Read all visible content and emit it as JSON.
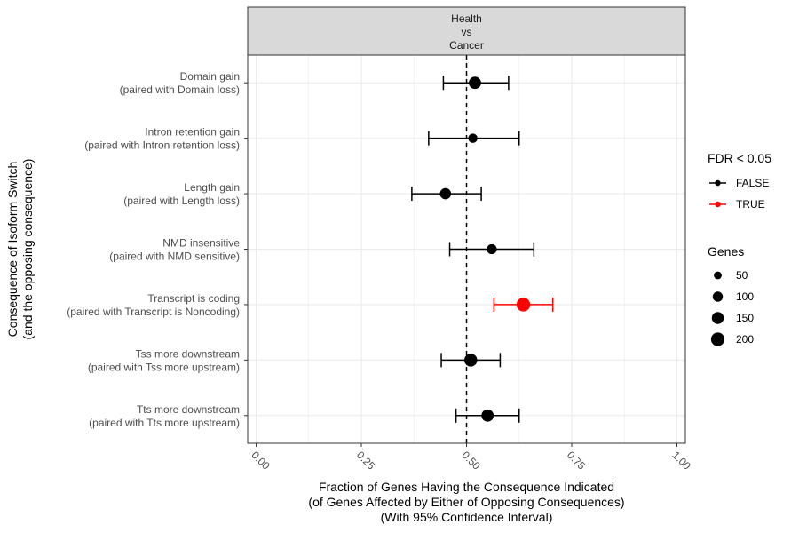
{
  "chart_data": {
    "type": "scatter",
    "subtype": "forest-plot-with-error-bars",
    "facet_strip": [
      "Health",
      "vs",
      "Cancer"
    ],
    "xlabel": [
      "Fraction of Genes Having the Consequence Indicated",
      "(of Genes Affected by Either of Opposing Consequences)",
      "(With 95% Confidence Interval)"
    ],
    "ylabel": [
      "Consequence of Isoform Switch",
      "(and the opposing consequence)"
    ],
    "xlim": [
      -0.02,
      1.02
    ],
    "x_ticks": [
      0,
      0.25,
      0.5,
      0.75,
      1
    ],
    "x_tick_labels": [
      "0.00",
      "0.25",
      "0.50",
      "0.75",
      "1.00"
    ],
    "reference_line_x": 0.5,
    "categories": [
      [
        "Domain gain",
        "(paired with Domain loss)"
      ],
      [
        "Intron retention gain",
        "(paired with Intron retention loss)"
      ],
      [
        "Length gain",
        "(paired with Length loss)"
      ],
      [
        "NMD insensitive",
        "(paired with NMD sensitive)"
      ],
      [
        "Transcript is coding",
        "(paired with Transcript is Noncoding)"
      ],
      [
        "Tss more downstream",
        "(paired with Tss more upstream)"
      ],
      [
        "Tts more downstream",
        "(paired with Tts more upstream)"
      ]
    ],
    "points": [
      {
        "estimate": 0.52,
        "ci_low": 0.445,
        "ci_high": 0.6,
        "genes": 160,
        "fdr_sig": false
      },
      {
        "estimate": 0.515,
        "ci_low": 0.41,
        "ci_high": 0.625,
        "genes": 80,
        "fdr_sig": false
      },
      {
        "estimate": 0.45,
        "ci_low": 0.37,
        "ci_high": 0.535,
        "genes": 125,
        "fdr_sig": false
      },
      {
        "estimate": 0.56,
        "ci_low": 0.46,
        "ci_high": 0.66,
        "genes": 95,
        "fdr_sig": false
      },
      {
        "estimate": 0.635,
        "ci_low": 0.565,
        "ci_high": 0.705,
        "genes": 210,
        "fdr_sig": true
      },
      {
        "estimate": 0.51,
        "ci_low": 0.44,
        "ci_high": 0.58,
        "genes": 180,
        "fdr_sig": false
      },
      {
        "estimate": 0.55,
        "ci_low": 0.475,
        "ci_high": 0.625,
        "genes": 160,
        "fdr_sig": false
      }
    ],
    "legend_placement": "right",
    "legend_color": {
      "title": "FDR < 0.05",
      "entries": [
        {
          "label": "FALSE",
          "color": "#000000"
        },
        {
          "label": "TRUE",
          "color": "#ff0000"
        }
      ]
    },
    "legend_size": {
      "title": "Genes",
      "entries": [
        {
          "label": "50",
          "value": 50
        },
        {
          "label": "100",
          "value": 100
        },
        {
          "label": "150",
          "value": 150
        },
        {
          "label": "200",
          "value": 200
        }
      ]
    },
    "grid": true,
    "colors": {
      "false": "#000000",
      "true": "#ff0000",
      "strip_bg": "#d9d9d9",
      "grid": "#ebebeb"
    }
  }
}
